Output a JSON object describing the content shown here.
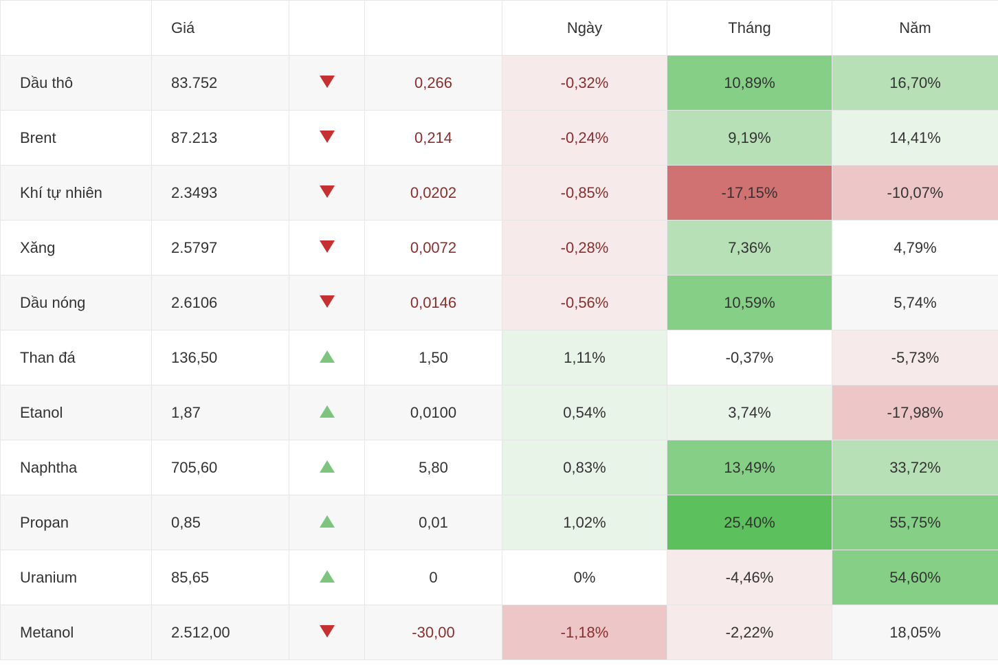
{
  "table": {
    "columns": {
      "name": "",
      "price": "Giá",
      "arrow": "",
      "change": "",
      "day": "Ngày",
      "month": "Tháng",
      "year": "Năm"
    },
    "colors": {
      "text_default": "#333333",
      "text_neg": "#8a2e2e",
      "arrow_up": "#7cc57c",
      "arrow_down": "#c73030",
      "border": "#e6e6e6",
      "row_even": "#f7f7f7",
      "row_odd": "#ffffff"
    },
    "heatmap": {
      "pos_light": "#e9f4e9",
      "pos_mid": "#b7e0b7",
      "pos_strong": "#86cf86",
      "pos_very": "#5cc05c",
      "neg_light": "#f6eaea",
      "neg_mid": "#edc7c7",
      "neg_strong": "#d07272",
      "neutral": "transparent"
    },
    "rows": [
      {
        "name": "Dầu thô",
        "price": "83.752",
        "dir": "down",
        "change": "0,266",
        "day": {
          "v": "-0,32%",
          "bg": "neg_light",
          "fg": "text_neg"
        },
        "month": {
          "v": "10,89%",
          "bg": "pos_strong",
          "fg": "text_default"
        },
        "year": {
          "v": "16,70%",
          "bg": "pos_mid",
          "fg": "text_default"
        }
      },
      {
        "name": "Brent",
        "price": "87.213",
        "dir": "down",
        "change": "0,214",
        "day": {
          "v": "-0,24%",
          "bg": "neg_light",
          "fg": "text_neg"
        },
        "month": {
          "v": "9,19%",
          "bg": "pos_mid",
          "fg": "text_default"
        },
        "year": {
          "v": "14,41%",
          "bg": "pos_light",
          "fg": "text_default"
        }
      },
      {
        "name": "Khí tự nhiên",
        "price": "2.3493",
        "dir": "down",
        "change": "0,0202",
        "day": {
          "v": "-0,85%",
          "bg": "neg_light",
          "fg": "text_neg"
        },
        "month": {
          "v": "-17,15%",
          "bg": "neg_strong",
          "fg": "text_default"
        },
        "year": {
          "v": "-10,07%",
          "bg": "neg_mid",
          "fg": "text_default"
        }
      },
      {
        "name": "Xăng",
        "price": "2.5797",
        "dir": "down",
        "change": "0,0072",
        "day": {
          "v": "-0,28%",
          "bg": "neg_light",
          "fg": "text_neg"
        },
        "month": {
          "v": "7,36%",
          "bg": "pos_mid",
          "fg": "text_default"
        },
        "year": {
          "v": "4,79%",
          "bg": "neutral",
          "fg": "text_default"
        }
      },
      {
        "name": "Dầu nóng",
        "price": "2.6106",
        "dir": "down",
        "change": "0,0146",
        "day": {
          "v": "-0,56%",
          "bg": "neg_light",
          "fg": "text_neg"
        },
        "month": {
          "v": "10,59%",
          "bg": "pos_strong",
          "fg": "text_default"
        },
        "year": {
          "v": "5,74%",
          "bg": "neutral",
          "fg": "text_default"
        }
      },
      {
        "name": "Than đá",
        "price": "136,50",
        "dir": "up",
        "change": "1,50",
        "day": {
          "v": "1,11%",
          "bg": "pos_light",
          "fg": "text_default"
        },
        "month": {
          "v": "-0,37%",
          "bg": "neutral",
          "fg": "text_default"
        },
        "year": {
          "v": "-5,73%",
          "bg": "neg_light",
          "fg": "text_default"
        }
      },
      {
        "name": "Etanol",
        "price": "1,87",
        "dir": "up",
        "change": "0,0100",
        "day": {
          "v": "0,54%",
          "bg": "pos_light",
          "fg": "text_default"
        },
        "month": {
          "v": "3,74%",
          "bg": "pos_light",
          "fg": "text_default"
        },
        "year": {
          "v": "-17,98%",
          "bg": "neg_mid",
          "fg": "text_default"
        }
      },
      {
        "name": "Naphtha",
        "price": "705,60",
        "dir": "up",
        "change": "5,80",
        "day": {
          "v": "0,83%",
          "bg": "pos_light",
          "fg": "text_default"
        },
        "month": {
          "v": "13,49%",
          "bg": "pos_strong",
          "fg": "text_default"
        },
        "year": {
          "v": "33,72%",
          "bg": "pos_mid",
          "fg": "text_default"
        }
      },
      {
        "name": "Propan",
        "price": "0,85",
        "dir": "up",
        "change": "0,01",
        "day": {
          "v": "1,02%",
          "bg": "pos_light",
          "fg": "text_default"
        },
        "month": {
          "v": "25,40%",
          "bg": "pos_very",
          "fg": "text_default"
        },
        "year": {
          "v": "55,75%",
          "bg": "pos_strong",
          "fg": "text_default"
        }
      },
      {
        "name": "Uranium",
        "price": "85,65",
        "dir": "up",
        "change": "0",
        "day": {
          "v": "0%",
          "bg": "neutral",
          "fg": "text_default"
        },
        "month": {
          "v": "-4,46%",
          "bg": "neg_light",
          "fg": "text_default"
        },
        "year": {
          "v": "54,60%",
          "bg": "pos_strong",
          "fg": "text_default"
        }
      },
      {
        "name": "Metanol",
        "price": "2.512,00",
        "dir": "down",
        "change": "-30,00",
        "day": {
          "v": "-1,18%",
          "bg": "neg_mid",
          "fg": "text_neg"
        },
        "month": {
          "v": "-2,22%",
          "bg": "neg_light",
          "fg": "text_default"
        },
        "year": {
          "v": "18,05%",
          "bg": "neutral",
          "fg": "text_default"
        }
      }
    ]
  }
}
